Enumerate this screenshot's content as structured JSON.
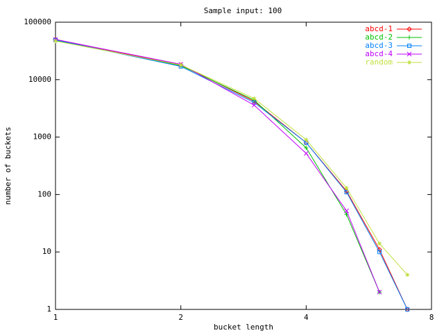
{
  "chart_data": {
    "type": "line",
    "title": "Sample input: 100",
    "x_label": "bucket length",
    "y_label": "number of buckets",
    "x": [
      1,
      2,
      3,
      4,
      5,
      6,
      7
    ],
    "xscale": "log",
    "yscale": "log",
    "xlim": [
      1,
      8
    ],
    "ylim": [
      1,
      100000
    ],
    "xticks": [
      1,
      2,
      4,
      8
    ],
    "yticks": [
      1,
      10,
      100,
      1000,
      10000,
      100000
    ],
    "legend": "top-right",
    "series": [
      {
        "name": "abcd-1",
        "color": "#ff0000",
        "values": [
          50000,
          18000,
          4200,
          800,
          115,
          11,
          1
        ]
      },
      {
        "name": "abcd-2",
        "color": "#00c000",
        "values": [
          48000,
          17500,
          4400,
          650,
          45,
          2,
          null
        ]
      },
      {
        "name": "abcd-3",
        "color": "#0080ff",
        "values": [
          49000,
          17000,
          4000,
          800,
          110,
          10,
          1
        ]
      },
      {
        "name": "abcd-4",
        "color": "#c000ff",
        "values": [
          50000,
          18500,
          3600,
          520,
          52,
          2,
          null
        ]
      },
      {
        "name": "random",
        "color": "#c0e040",
        "values": [
          47000,
          18000,
          4700,
          900,
          130,
          14,
          4
        ]
      }
    ]
  }
}
